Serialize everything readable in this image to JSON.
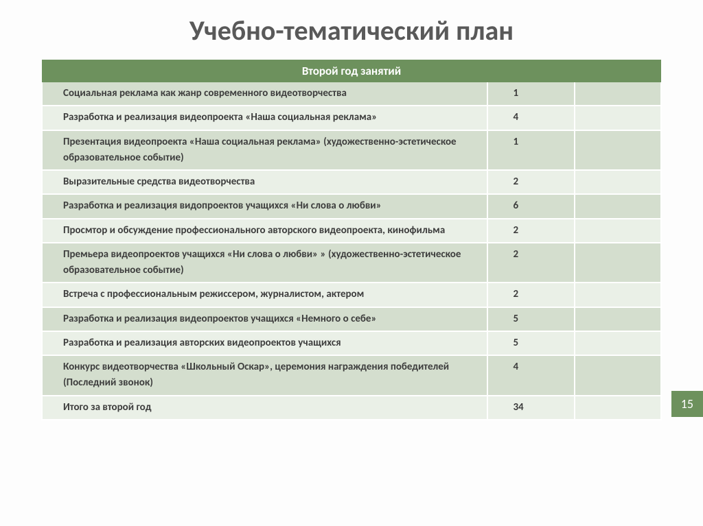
{
  "title": "Учебно-тематический план",
  "table": {
    "header": "Второй год занятий",
    "rows": [
      {
        "desc": "Социальная реклама как жанр современного видеотворчества",
        "num": "1"
      },
      {
        "desc": "Разработка и реализация видеопроекта «Наша социальная реклама»",
        "num": "4"
      },
      {
        "desc": "Презентация видеопроекта «Наша социальная реклама» (художественно-эстетическое образовательное событие)",
        "num": "1"
      },
      {
        "desc": "Выразительные средства видеотворчества",
        "num": "2"
      },
      {
        "desc": "Разработка и реализация видопроектов учащихся «Ни слова о любви»",
        "num": "6"
      },
      {
        "desc": "Просмтор и обсуждение профессионального авторского видеопроекта, кинофильма",
        "num": "2"
      },
      {
        "desc": "Премьера видеопроектов учащихся «Ни слова о любви» » (художественно-эстетическое образовательное событие)",
        "num": "2"
      },
      {
        "desc": "Встреча с профессиональным режиссером, журналистом, актером",
        "num": "2"
      },
      {
        "desc": "Разработка и реализация видеопроектов учащихся «Немного о себе»",
        "num": "5"
      },
      {
        "desc": "Разработка и реализация авторских видеопроектов учащихся",
        "num": "5"
      },
      {
        "desc": "Конкурс видеотворчества «Школьный Оскар», церемония награждения победителей (Последний звонок)",
        "num": "4"
      },
      {
        "desc": "Итого за второй год",
        "num": "34"
      }
    ],
    "stripe_colors": [
      "#d4dece",
      "#eaf0e7"
    ]
  },
  "page_number": "15",
  "colors": {
    "background": "#fdfdfd",
    "title_color": "#595959",
    "header_bg": "#6d915d",
    "header_text": "#ffffff",
    "stripe_a": "#d4dece",
    "stripe_b": "#eaf0e7",
    "cell_text": "#3d3d3d",
    "border": "#ffffff",
    "badge_bg": "#6d915d",
    "badge_text": "#ffffff"
  },
  "fonts": {
    "title_size": 40,
    "header_size": 17,
    "cell_size": 15,
    "badge_size": 18
  }
}
